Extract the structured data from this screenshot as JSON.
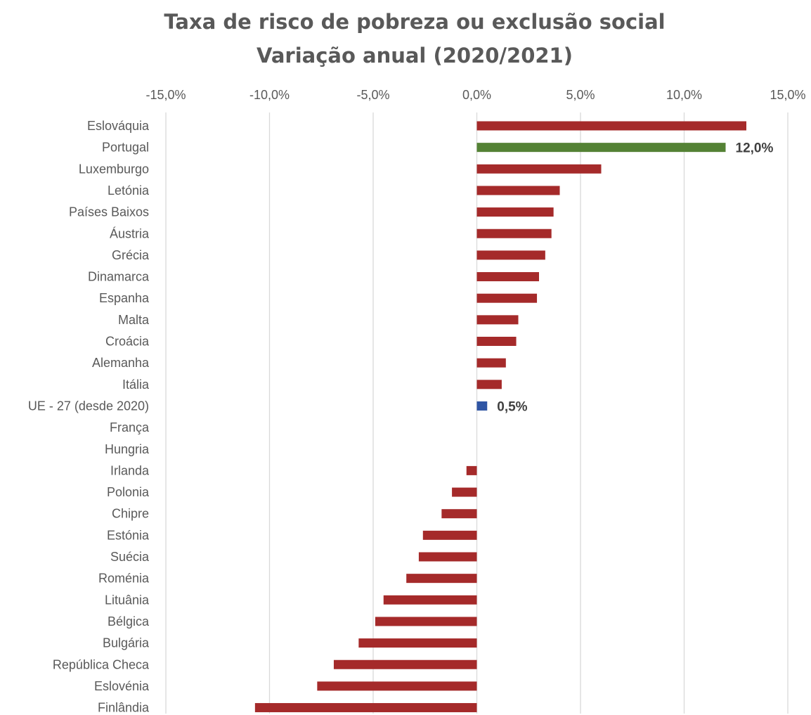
{
  "chart_data": {
    "type": "bar",
    "orientation": "horizontal",
    "title": "Taxa de risco de pobreza ou exclusão social",
    "subtitle": "Variação anual (2020/2021)",
    "xlim": [
      -15,
      15
    ],
    "x_ticks": [
      -15,
      -10,
      -5,
      0,
      5,
      10,
      15
    ],
    "x_tick_labels": [
      "-15,0%",
      "-10,0%",
      "-5,0%",
      "0,0%",
      "5,0%",
      "10,0%",
      "15,0%"
    ],
    "x_axis_position": "top",
    "grid": true,
    "colors": {
      "default": "#a52a2a",
      "highlight_portugal": "#548235",
      "highlight_eu": "#2f55a4"
    },
    "categories": [
      "Eslováquia",
      "Portugal",
      "Luxemburgo",
      "Letónia",
      "Países Baixos",
      "Áustria",
      "Grécia",
      "Dinamarca",
      "Espanha",
      "Malta",
      "Croácia",
      "Alemanha",
      "Itália",
      "UE - 27 (desde 2020)",
      "França",
      "Hungria",
      "Irlanda",
      "Polonia",
      "Chipre",
      "Estónia",
      "Suécia",
      "Roménia",
      "Lituânia",
      "Bélgica",
      "Bulgária",
      "República Checa",
      "Eslovénia",
      "Finlândia"
    ],
    "values": [
      13.0,
      12.0,
      6.0,
      4.0,
      3.7,
      3.6,
      3.3,
      3.0,
      2.9,
      2.0,
      1.9,
      1.4,
      1.2,
      0.5,
      0.0,
      0.0,
      -0.5,
      -1.2,
      -1.7,
      -2.6,
      -2.8,
      -3.4,
      -4.5,
      -4.9,
      -5.7,
      -6.9,
      -7.7,
      -10.7
    ],
    "bar_colors": [
      "default",
      "highlight_portugal",
      "default",
      "default",
      "default",
      "default",
      "default",
      "default",
      "default",
      "default",
      "default",
      "default",
      "default",
      "highlight_eu",
      "default",
      "default",
      "default",
      "default",
      "default",
      "default",
      "default",
      "default",
      "default",
      "default",
      "default",
      "default",
      "default",
      "default"
    ],
    "data_labels": [
      {
        "category": "Portugal",
        "text": "12,0%"
      },
      {
        "category": "UE - 27 (desde 2020)",
        "text": "0,5%"
      }
    ]
  }
}
